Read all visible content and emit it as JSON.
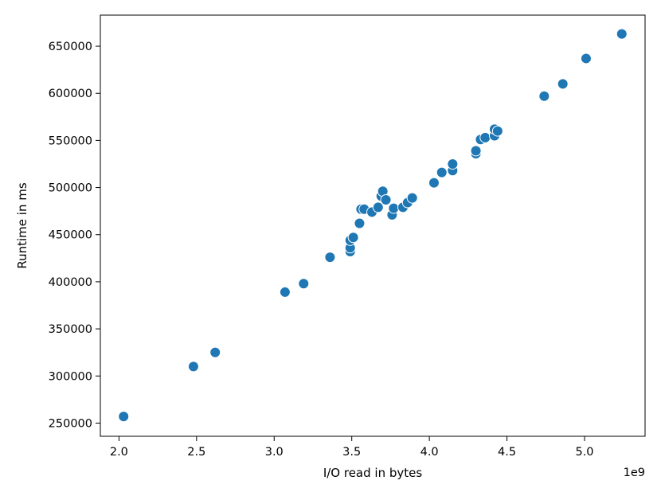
{
  "chart_data": {
    "type": "scatter",
    "title": "",
    "xlabel": "I/O read in bytes",
    "ylabel": "Runtime in ms",
    "x_offset_label": "1e9",
    "x_scale_factor": 1000000000,
    "xlim": [
      1.88,
      5.39
    ],
    "ylim": [
      236000,
      683000
    ],
    "xticks": [
      2.0,
      2.5,
      3.0,
      3.5,
      4.0,
      4.5,
      5.0
    ],
    "xtick_labels": [
      "2.0",
      "2.5",
      "3.0",
      "3.5",
      "4.0",
      "4.5",
      "5.0"
    ],
    "yticks": [
      250000,
      300000,
      350000,
      400000,
      450000,
      500000,
      550000,
      600000,
      650000
    ],
    "ytick_labels": [
      "250000",
      "300000",
      "350000",
      "400000",
      "450000",
      "500000",
      "550000",
      "600000",
      "650000"
    ],
    "grid": false,
    "point_color": "#1f77b4",
    "points": [
      {
        "x": 2.03,
        "y": 257000
      },
      {
        "x": 2.48,
        "y": 310000
      },
      {
        "x": 2.62,
        "y": 325000
      },
      {
        "x": 3.07,
        "y": 389000
      },
      {
        "x": 3.19,
        "y": 398000
      },
      {
        "x": 3.36,
        "y": 426000
      },
      {
        "x": 3.49,
        "y": 432000
      },
      {
        "x": 3.49,
        "y": 436000
      },
      {
        "x": 3.49,
        "y": 444000
      },
      {
        "x": 3.51,
        "y": 447000
      },
      {
        "x": 3.55,
        "y": 462000
      },
      {
        "x": 3.56,
        "y": 477000
      },
      {
        "x": 3.58,
        "y": 477000
      },
      {
        "x": 3.63,
        "y": 474000
      },
      {
        "x": 3.67,
        "y": 479000
      },
      {
        "x": 3.69,
        "y": 491000
      },
      {
        "x": 3.7,
        "y": 496000
      },
      {
        "x": 3.72,
        "y": 487000
      },
      {
        "x": 3.76,
        "y": 471000
      },
      {
        "x": 3.77,
        "y": 478000
      },
      {
        "x": 3.83,
        "y": 479000
      },
      {
        "x": 3.86,
        "y": 484000
      },
      {
        "x": 3.89,
        "y": 489000
      },
      {
        "x": 4.03,
        "y": 505000
      },
      {
        "x": 4.08,
        "y": 516000
      },
      {
        "x": 4.15,
        "y": 518000
      },
      {
        "x": 4.15,
        "y": 525000
      },
      {
        "x": 4.3,
        "y": 536000
      },
      {
        "x": 4.3,
        "y": 539000
      },
      {
        "x": 4.33,
        "y": 551000
      },
      {
        "x": 4.36,
        "y": 553000
      },
      {
        "x": 4.42,
        "y": 555000
      },
      {
        "x": 4.42,
        "y": 562000
      },
      {
        "x": 4.44,
        "y": 560000
      },
      {
        "x": 4.74,
        "y": 597000
      },
      {
        "x": 4.86,
        "y": 610000
      },
      {
        "x": 5.01,
        "y": 637000
      },
      {
        "x": 5.24,
        "y": 663000
      }
    ]
  }
}
